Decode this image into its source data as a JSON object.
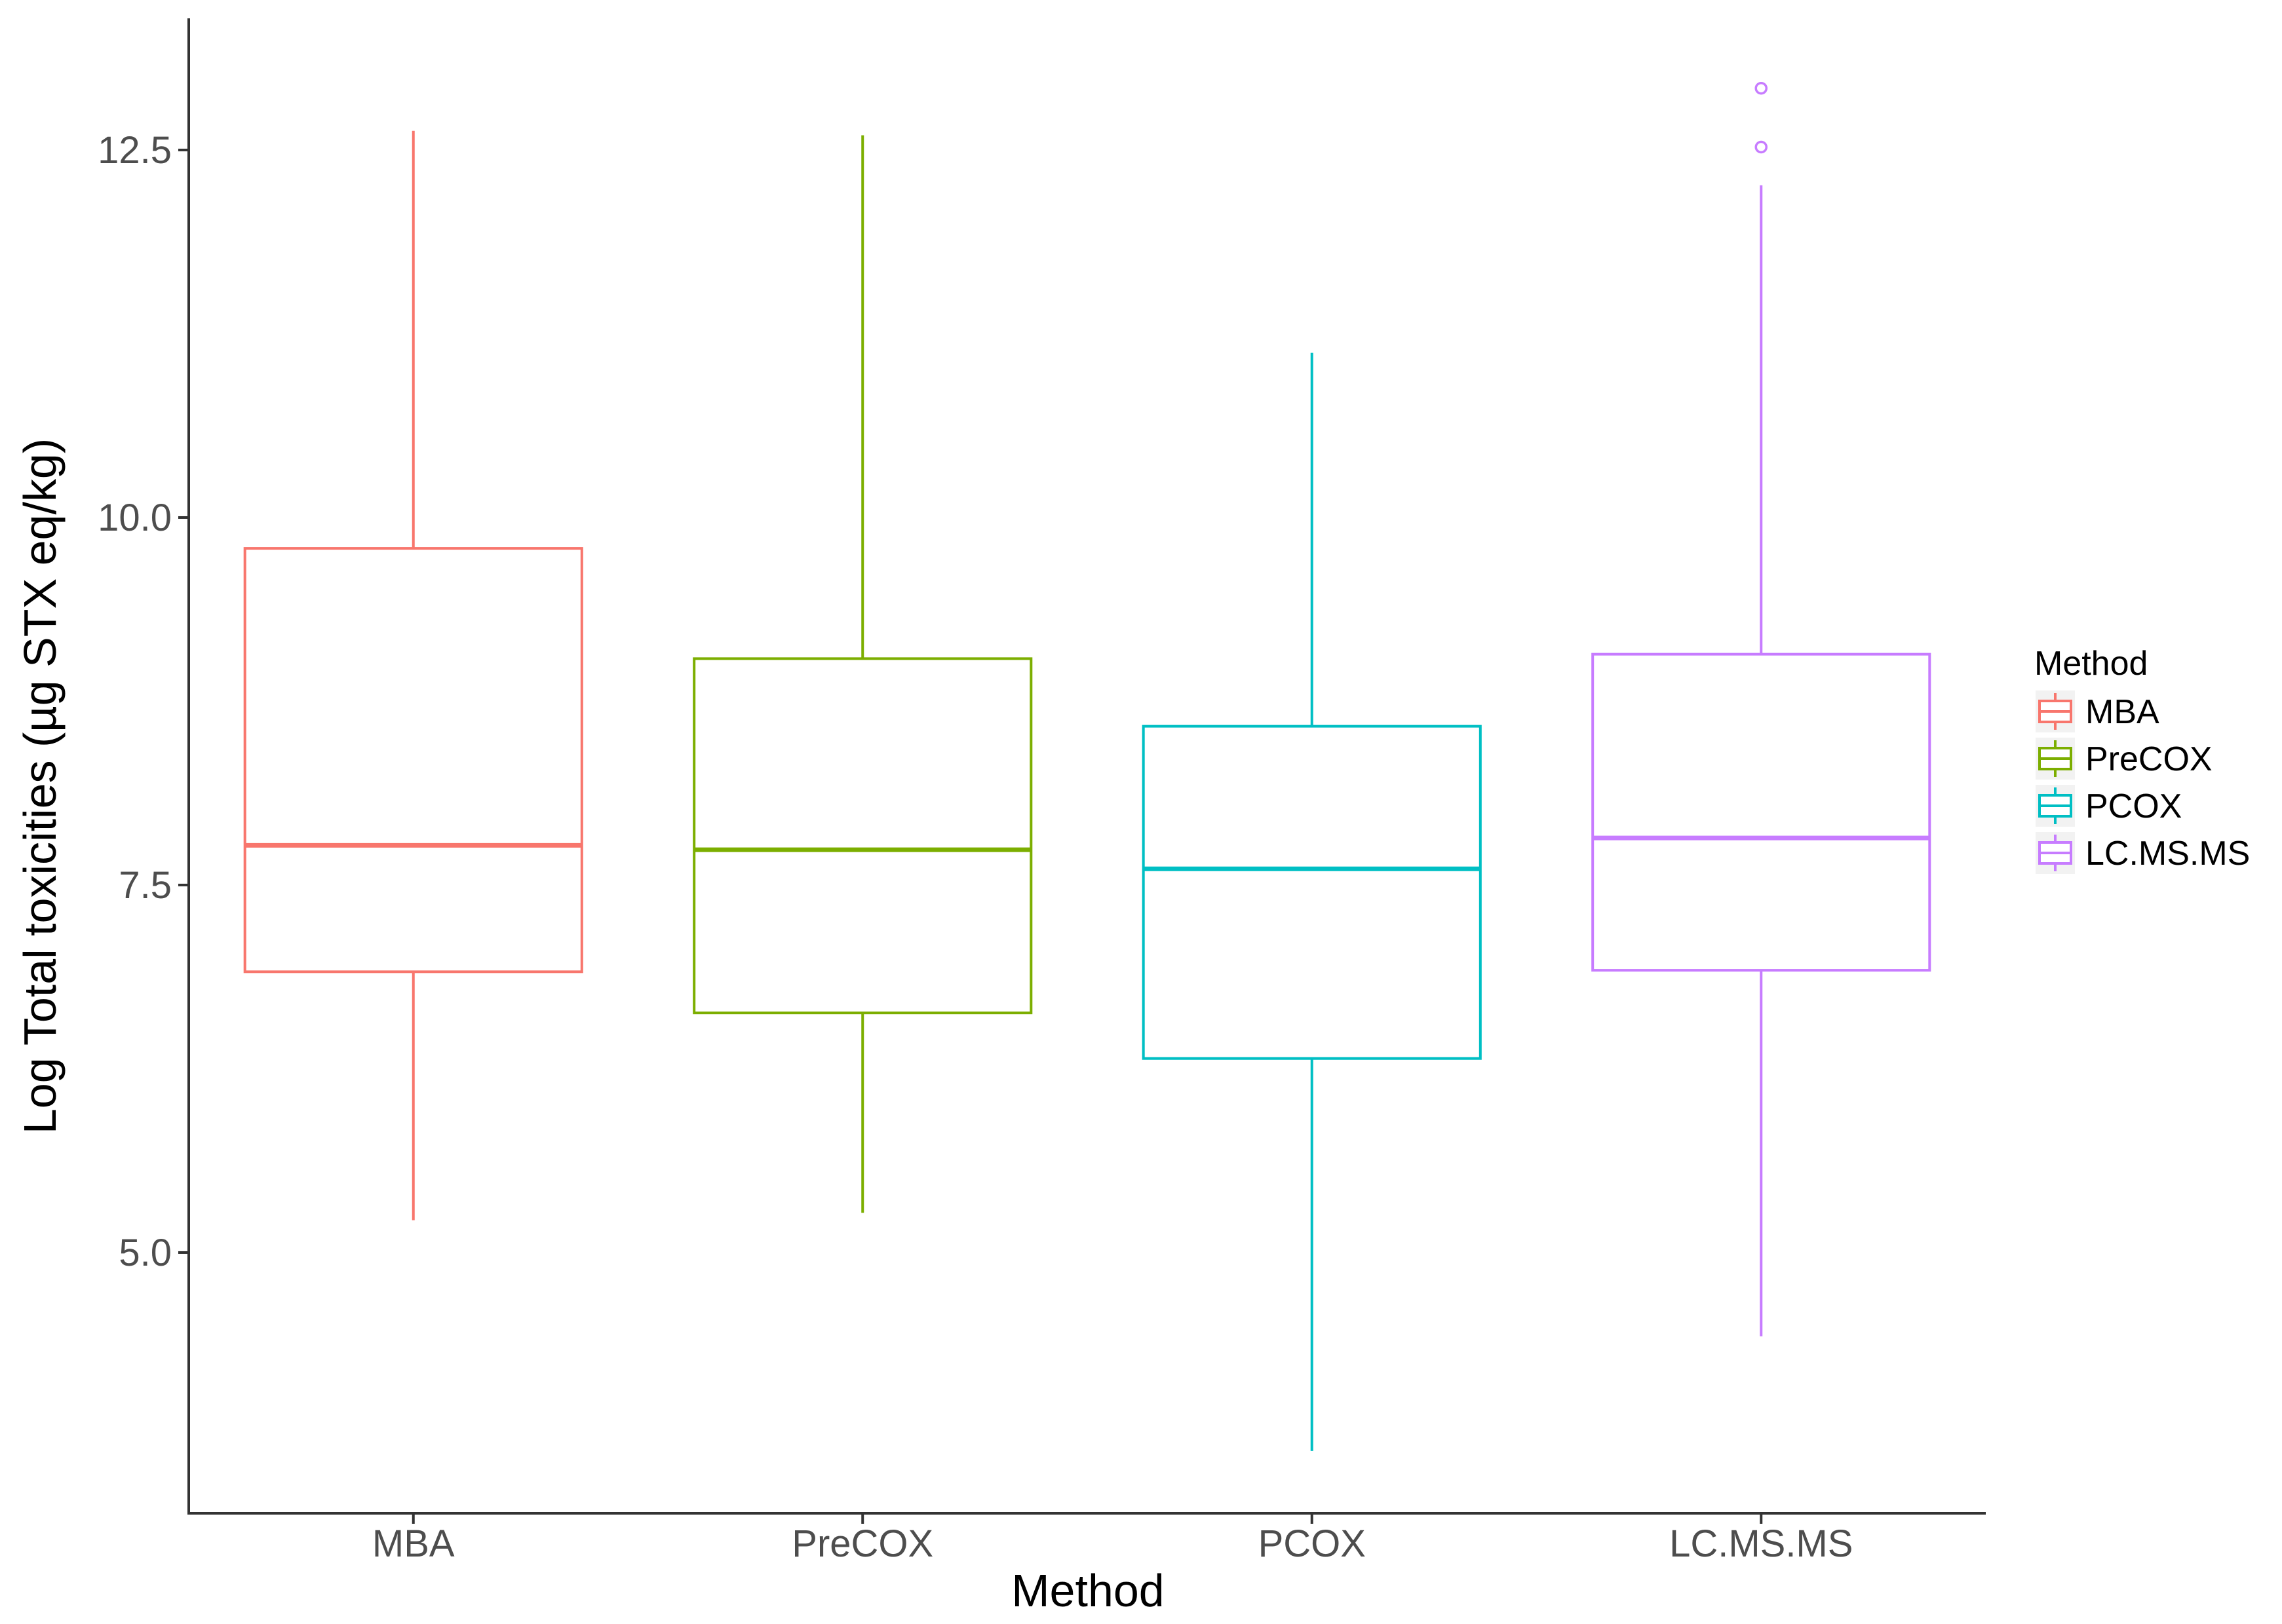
{
  "chart_data": {
    "type": "box",
    "xlabel": "Method",
    "ylabel": "Log Total toxicities (µg STX eq/kg)",
    "categories": [
      "MBA",
      "PreCOX",
      "PCOX",
      "LC.MS.MS"
    ],
    "ylim": [
      3.4,
      13.4
    ],
    "yticks": [
      5.0,
      7.5,
      10.0,
      12.5
    ],
    "ytick_labels": [
      "5.0",
      "7.5",
      "10.0",
      "12.5"
    ],
    "grid": false,
    "legend": {
      "title": "Method",
      "position": "right",
      "entries": [
        "MBA",
        "PreCOX",
        "PCOX",
        "LC.MS.MS"
      ]
    },
    "series": [
      {
        "name": "MBA",
        "color": "#F8766D",
        "min": 5.22,
        "q1": 6.91,
        "median": 7.77,
        "q3": 9.79,
        "max": 12.63,
        "outliers": []
      },
      {
        "name": "PreCOX",
        "color": "#7CAE00",
        "min": 5.27,
        "q1": 6.63,
        "median": 7.74,
        "q3": 9.04,
        "max": 12.6,
        "outliers": []
      },
      {
        "name": "PCOX",
        "color": "#00BFC4",
        "min": 3.65,
        "q1": 6.32,
        "median": 7.61,
        "q3": 8.58,
        "max": 11.12,
        "outliers": []
      },
      {
        "name": "LC.MS.MS",
        "color": "#C77CFF",
        "min": 4.43,
        "q1": 6.92,
        "median": 7.82,
        "q3": 9.07,
        "max": 12.26,
        "outliers": [
          12.52,
          12.92
        ]
      }
    ]
  }
}
